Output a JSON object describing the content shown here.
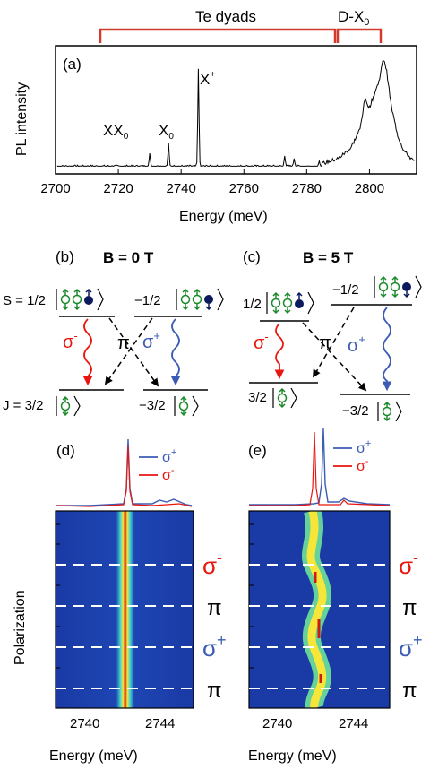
{
  "panel_a": {
    "label": "(a)",
    "ylabel": "PL intensity",
    "xlabel": "Energy (meV)",
    "bracket_te": "Te dyads",
    "bracket_dx": "D-X",
    "bracket_dx_sub": "0",
    "peak_xx": "XX",
    "peak_xx_sub": "0",
    "peak_x0": "X",
    "peak_x0_sub": "0",
    "peak_xplus": "X",
    "peak_xplus_sup": "+"
  },
  "chart_data": {
    "type": "line",
    "xlim": [
      2700,
      2815
    ],
    "x_ticks": [
      "2700",
      "2720",
      "2740",
      "2760",
      "2780",
      "2800"
    ],
    "x_tick_values": [
      2700,
      2720,
      2740,
      2760,
      2780,
      2800
    ],
    "ylabel": "PL intensity",
    "xlabel": "Energy (meV)",
    "baseline": 0.06,
    "peaks": [
      {
        "x": 2730,
        "y": 0.16
      },
      {
        "x": 2736,
        "y": 0.24
      },
      {
        "x": 2745.5,
        "y": 0.82
      },
      {
        "x": 2773,
        "y": 0.14
      },
      {
        "x": 2776,
        "y": 0.12
      },
      {
        "x": 2784,
        "y": 0.1
      }
    ],
    "broad_band": [
      [
        2785,
        0.08
      ],
      [
        2790,
        0.12
      ],
      [
        2794,
        0.2
      ],
      [
        2797,
        0.35
      ],
      [
        2798.5,
        0.58
      ],
      [
        2800,
        0.52
      ],
      [
        2801.5,
        0.62
      ],
      [
        2803,
        0.72
      ],
      [
        2804,
        0.85
      ],
      [
        2804.6,
        0.9
      ],
      [
        2805.5,
        0.8
      ],
      [
        2807,
        0.52
      ],
      [
        2809,
        0.3
      ],
      [
        2811,
        0.18
      ],
      [
        2814,
        0.1
      ]
    ]
  },
  "panel_b": {
    "label": "(b)",
    "title": "B = 0 T",
    "s_left_prefix": "S = 1/2",
    "s_right_prefix": "−1/2",
    "j_left_prefix": "J = 3/2",
    "j_right_prefix": "−3/2",
    "sigma_minus": "σ",
    "sigma_minus_sup": "-",
    "pi": "π",
    "sigma_plus": "σ",
    "sigma_plus_sup": "+"
  },
  "panel_c": {
    "label": "(c)",
    "title": "B = 5 T",
    "s_left_prefix": "1/2",
    "s_right_prefix": "−1/2",
    "j_left_prefix": "3/2",
    "j_right_prefix": "−3/2",
    "sigma_minus": "σ",
    "sigma_minus_sup": "-",
    "pi": "π",
    "sigma_plus": "σ",
    "sigma_plus_sup": "+"
  },
  "panel_d": {
    "label": "(d)",
    "legend_plus": "σ",
    "legend_plus_sup": "+",
    "legend_minus": "σ",
    "legend_minus_sup": "-",
    "xticks": [
      "2740",
      "2744"
    ],
    "xlabel": "Energy (meV)"
  },
  "panel_e": {
    "label": "(e)",
    "legend_plus": "σ",
    "legend_plus_sup": "+",
    "legend_minus": "σ",
    "legend_minus_sup": "-",
    "xticks": [
      "2740",
      "2744"
    ],
    "xlabel": "Energy (meV)"
  },
  "polarization": {
    "ylabel": "Polarization",
    "rows": [
      {
        "main": "σ",
        "sup": "-"
      },
      {
        "main": "π",
        "sup": ""
      },
      {
        "main": "σ",
        "sup": "+"
      },
      {
        "main": "π",
        "sup": ""
      }
    ]
  },
  "colors": {
    "red": "#e8160f",
    "blue": "#3b5bb5",
    "green": "#1a8a2a",
    "navy": "#0b1a5c",
    "heat_bg": "#1a3aa5",
    "bracket": "#d23a2c"
  }
}
